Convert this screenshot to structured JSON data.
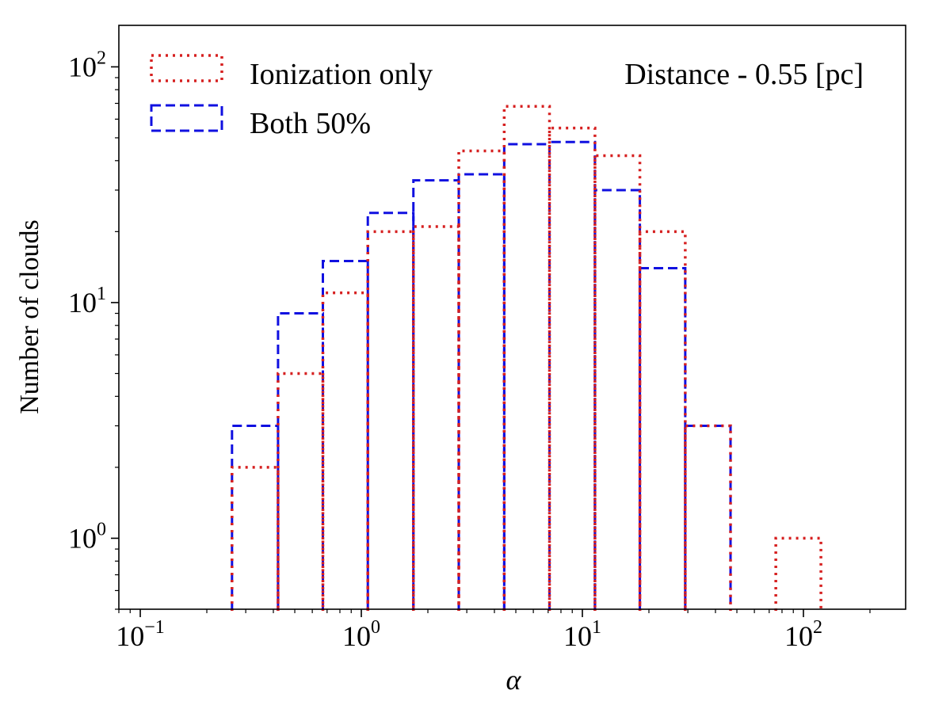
{
  "chart_data": {
    "type": "histogram",
    "xscale": "log",
    "yscale": "log",
    "xlim": [
      0.08,
      290
    ],
    "ylim": [
      0.5,
      150
    ],
    "xlabel": "α",
    "ylabel": "Number of clouds",
    "annotation": "Distance - 0.55 [pc]",
    "x_ticks": [
      {
        "value": 0.1,
        "base": "10",
        "exp": "−1"
      },
      {
        "value": 1,
        "base": "10",
        "exp": "0"
      },
      {
        "value": 10,
        "base": "10",
        "exp": "1"
      },
      {
        "value": 100,
        "base": "10",
        "exp": "2"
      }
    ],
    "y_ticks": [
      {
        "value": 1,
        "base": "10",
        "exp": "0"
      },
      {
        "value": 10,
        "base": "10",
        "exp": "1"
      },
      {
        "value": 100,
        "base": "10",
        "exp": "2"
      }
    ],
    "bin_edges": [
      0.26,
      0.42,
      0.67,
      1.07,
      1.72,
      2.76,
      4.43,
      7.1,
      11.4,
      18.2,
      29.2,
      46.8,
      75.0,
      120.0
    ],
    "series": [
      {
        "name": "Ionization only",
        "color": "#d62020",
        "style": "dotted",
        "counts": [
          2,
          5,
          11,
          20,
          21,
          44,
          68,
          55,
          42,
          20,
          3,
          0,
          1
        ]
      },
      {
        "name": "Both 50%",
        "color": "#1010e0",
        "style": "dashed",
        "counts": [
          3,
          9,
          15,
          24,
          33,
          35,
          47,
          48,
          30,
          14,
          3,
          0,
          0
        ]
      }
    ]
  }
}
